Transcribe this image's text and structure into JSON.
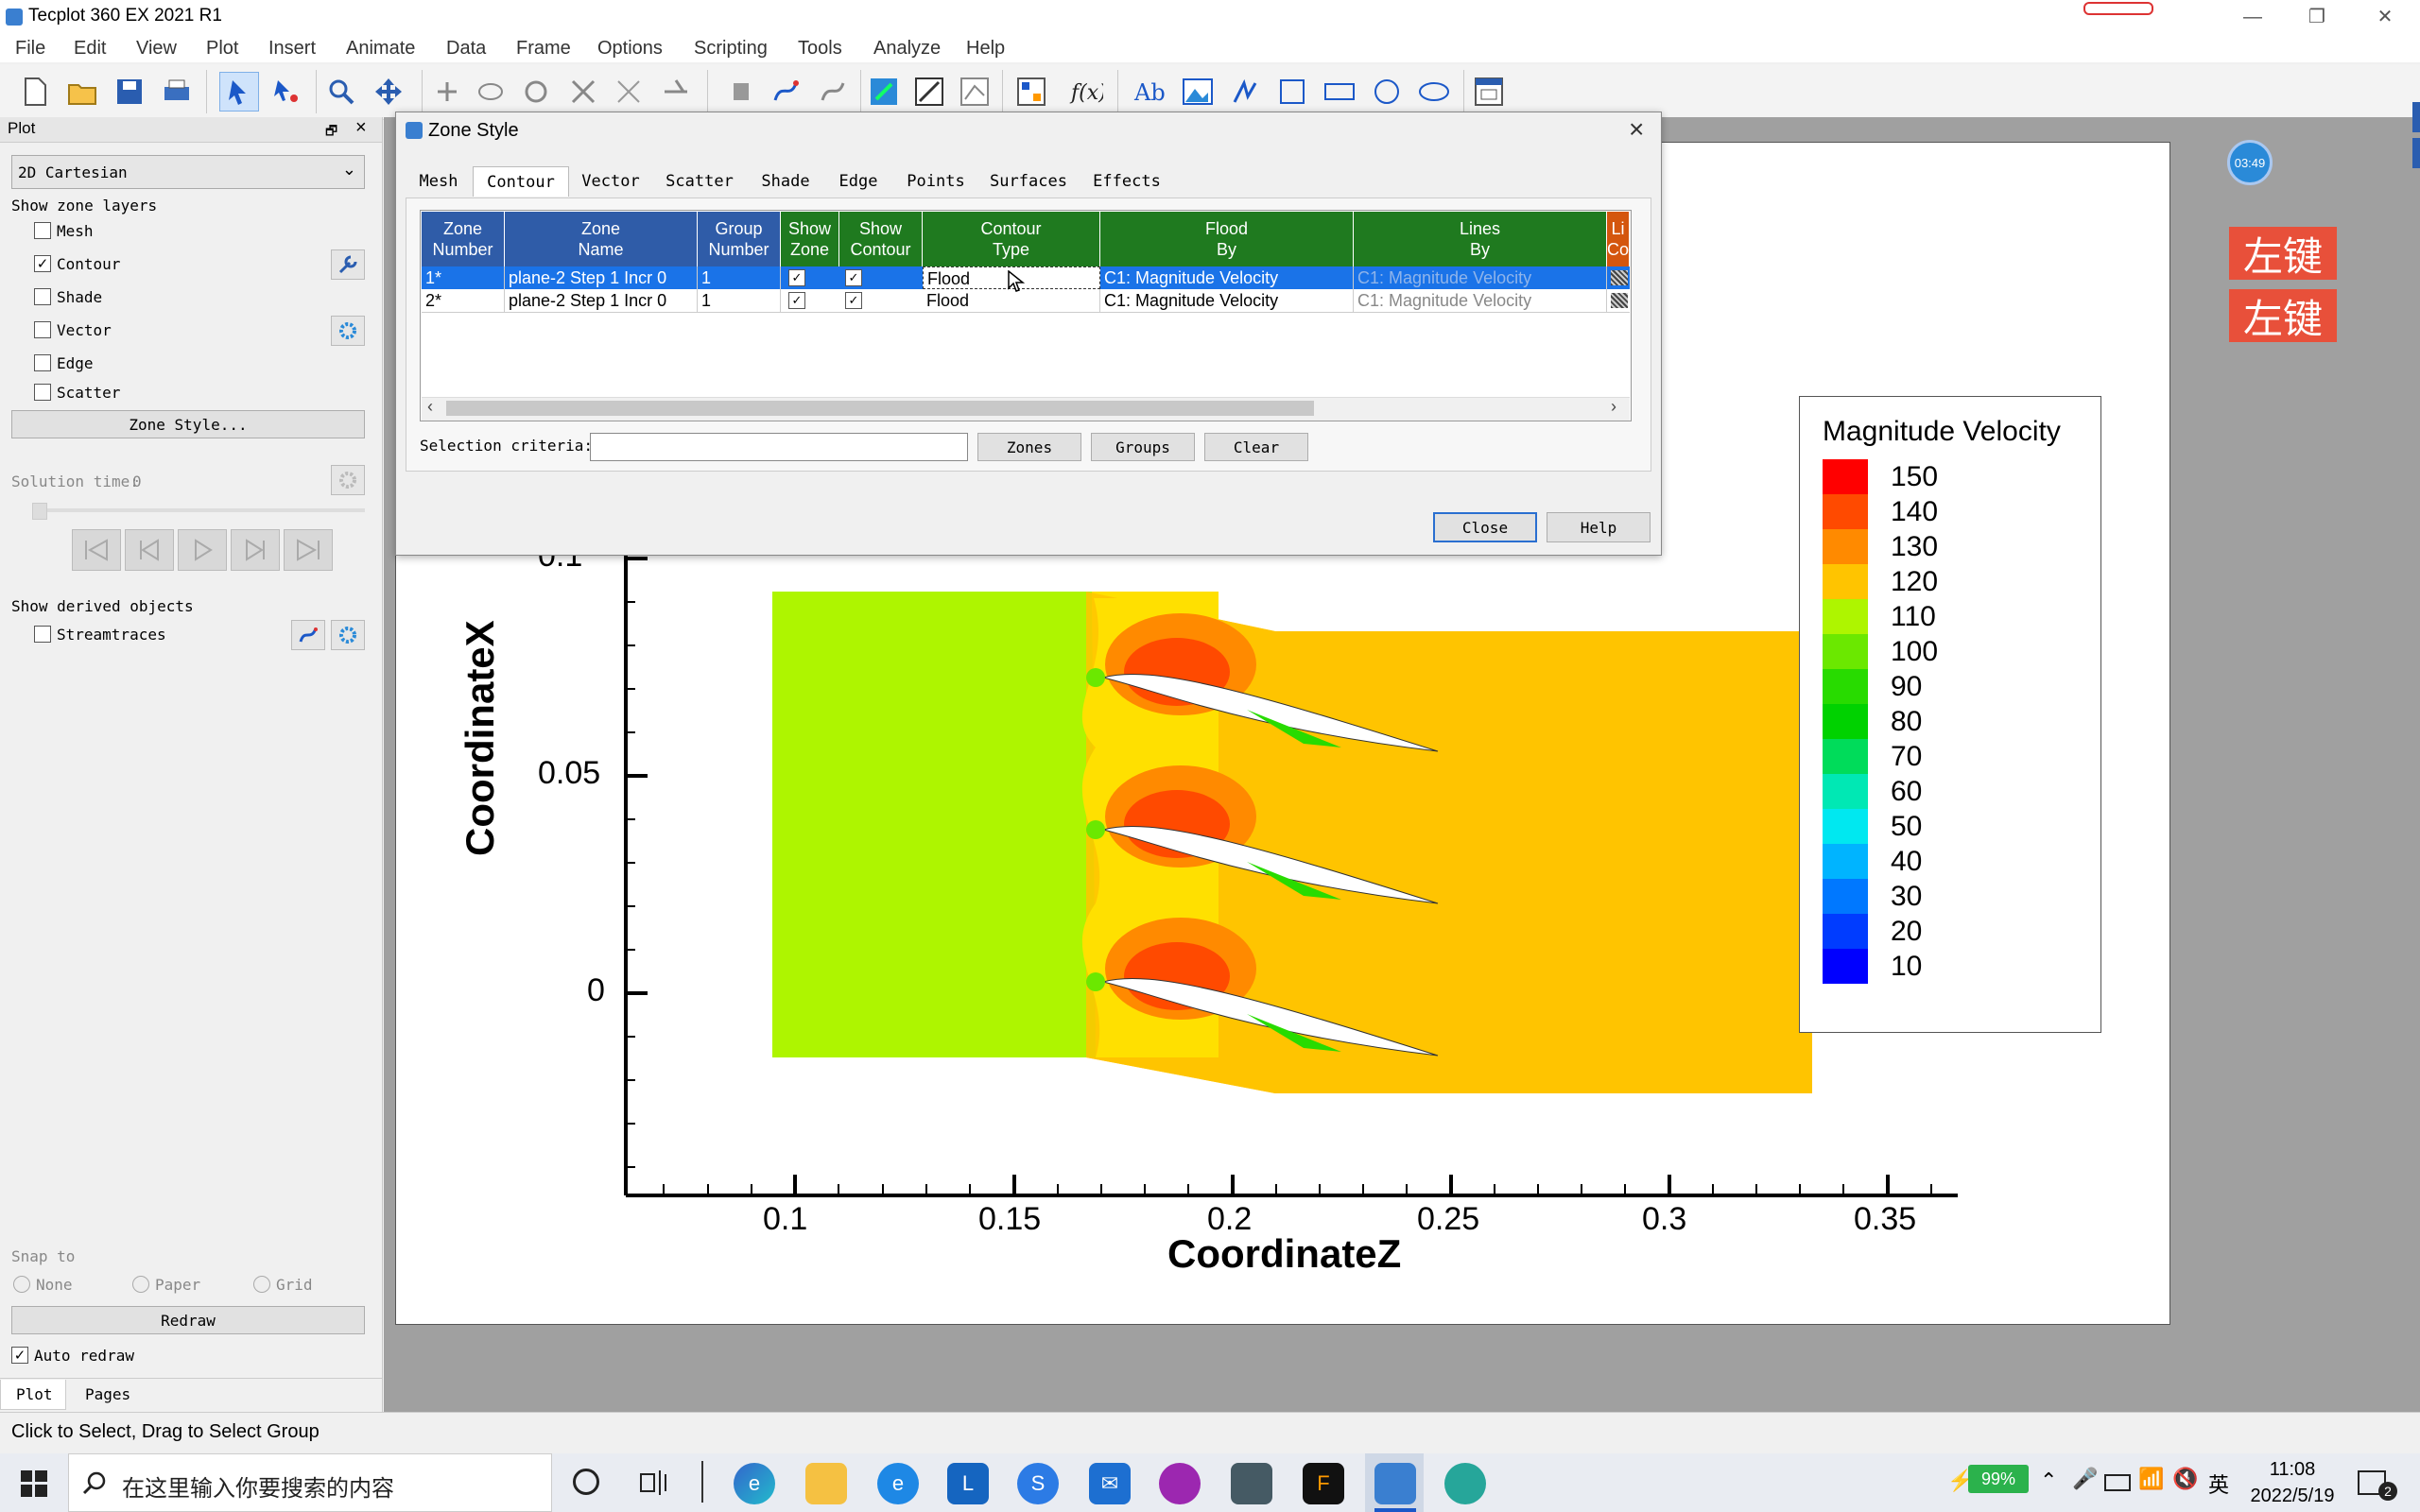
{
  "window": {
    "title": "Tecplot 360 EX 2021 R1",
    "controls": [
      "—",
      "❐",
      "✕"
    ]
  },
  "menu": [
    "File",
    "Edit",
    "View",
    "Plot",
    "Insert",
    "Animate",
    "Data",
    "Frame",
    "Options",
    "Scripting",
    "Tools",
    "Analyze",
    "Help"
  ],
  "sidebar": {
    "header": "Plot",
    "plot_type": "2D Cartesian",
    "zone_layers_label": "Show zone layers",
    "layers": [
      {
        "label": "Mesh",
        "checked": false
      },
      {
        "label": "Contour",
        "checked": true
      },
      {
        "label": "Shade",
        "checked": false
      },
      {
        "label": "Vector",
        "checked": false
      },
      {
        "label": "Edge",
        "checked": false
      },
      {
        "label": "Scatter",
        "checked": false
      }
    ],
    "zone_style_button": "Zone Style...",
    "solution_time_label": "Solution time:",
    "solution_time_value": "0",
    "derived_label": "Show derived objects",
    "streamtraces": "Streamtraces",
    "snap_label": "Snap to",
    "snap_options": [
      "None",
      "Paper",
      "Grid"
    ],
    "redraw_button": "Redraw",
    "auto_redraw": "Auto redraw",
    "bottom_tabs": [
      "Plot",
      "Pages"
    ]
  },
  "dialog": {
    "title": "Zone Style",
    "tabs": [
      "Mesh",
      "Contour",
      "Vector",
      "Scatter",
      "Shade",
      "Edge",
      "Points",
      "Surfaces",
      "Effects"
    ],
    "active_tab": "Contour",
    "columns": [
      "Zone\nNumber",
      "Zone\nName",
      "Group\nNumber",
      "Show\nZone",
      "Show\nContour",
      "Contour\nType",
      "Flood\nBy",
      "Lines\nBy",
      "Li\nCo"
    ],
    "rows": [
      {
        "number": "1*",
        "name": "plane-2 Step 1 Incr 0",
        "group": "1",
        "show_zone": true,
        "show_contour": true,
        "type": "Flood",
        "flood_by": "C1: Magnitude Velocity",
        "lines_by": "C1: Magnitude Velocity",
        "selected": true
      },
      {
        "number": "2*",
        "name": "plane-2 Step 1 Incr 0",
        "group": "1",
        "show_zone": true,
        "show_contour": true,
        "type": "Flood",
        "flood_by": "C1: Magnitude Velocity",
        "lines_by": "C1: Magnitude Velocity",
        "selected": false
      }
    ],
    "selection_label": "Selection criteria:",
    "selection_value": "",
    "buttons": {
      "zones": "Zones",
      "groups": "Groups",
      "clear": "Clear",
      "close": "Close",
      "help": "Help"
    }
  },
  "plot": {
    "xlabel": "CoordinateZ",
    "ylabel": "CoordinateX",
    "x_ticks": [
      "0.1",
      "0.15",
      "0.2",
      "0.25",
      "0.3",
      "0.35"
    ],
    "y_ticks": [
      "0.1",
      "0.05",
      "0"
    ],
    "legend_title": "Magnitude Velocity",
    "legend_levels": [
      "150",
      "140",
      "130",
      "120",
      "110",
      "100",
      "90",
      "80",
      "70",
      "60",
      "50",
      "40",
      "30",
      "20",
      "10"
    ],
    "legend_colors": [
      "#ff0000",
      "#ff4a00",
      "#ff8a00",
      "#ffc400",
      "#aef500",
      "#6be800",
      "#28db00",
      "#00d200",
      "#00dc5a",
      "#00e8b4",
      "#00e8f0",
      "#00b4ff",
      "#0078ff",
      "#003cff",
      "#0000ff"
    ],
    "overlay_labels": [
      "左键",
      "左键"
    ],
    "timer": "03:49"
  },
  "status": "Click to Select, Drag to Select Group",
  "taskbar": {
    "search_placeholder": "在这里输入你要搜索的内容",
    "battery": "99%",
    "ime": "英",
    "time": "11:08",
    "date": "2022/5/19",
    "notifications": "2"
  }
}
